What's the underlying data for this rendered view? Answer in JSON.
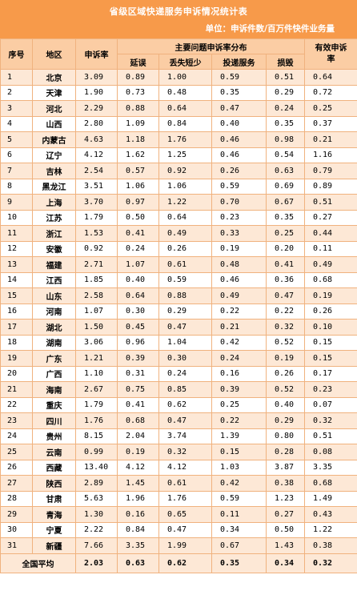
{
  "title": "省级区域快递服务申诉情况统计表",
  "unit": "单位：申诉件数/百万件快件业务量",
  "headers": {
    "index": "序号",
    "region": "地区",
    "rate": "申诉率",
    "group": "主要问题申诉率分布",
    "delay": "延误",
    "lost": "丢失短少",
    "delivery": "投递服务",
    "damage": "损毁",
    "valid": "有效申诉率"
  },
  "rows": [
    {
      "i": "1",
      "r": "北京",
      "rate": "3.09",
      "d": "0.89",
      "l": "1.00",
      "s": "0.59",
      "m": "0.51",
      "v": "0.64"
    },
    {
      "i": "2",
      "r": "天津",
      "rate": "1.90",
      "d": "0.73",
      "l": "0.48",
      "s": "0.35",
      "m": "0.29",
      "v": "0.72"
    },
    {
      "i": "3",
      "r": "河北",
      "rate": "2.29",
      "d": "0.88",
      "l": "0.64",
      "s": "0.47",
      "m": "0.24",
      "v": "0.25"
    },
    {
      "i": "4",
      "r": "山西",
      "rate": "2.80",
      "d": "1.09",
      "l": "0.84",
      "s": "0.40",
      "m": "0.35",
      "v": "0.37"
    },
    {
      "i": "5",
      "r": "内蒙古",
      "rate": "4.63",
      "d": "1.18",
      "l": "1.76",
      "s": "0.46",
      "m": "0.98",
      "v": "0.21"
    },
    {
      "i": "6",
      "r": "辽宁",
      "rate": "4.12",
      "d": "1.62",
      "l": "1.25",
      "s": "0.46",
      "m": "0.54",
      "v": "1.16"
    },
    {
      "i": "7",
      "r": "吉林",
      "rate": "2.54",
      "d": "0.57",
      "l": "0.92",
      "s": "0.26",
      "m": "0.63",
      "v": "0.79"
    },
    {
      "i": "8",
      "r": "黑龙江",
      "rate": "3.51",
      "d": "1.06",
      "l": "1.06",
      "s": "0.59",
      "m": "0.69",
      "v": "0.89"
    },
    {
      "i": "9",
      "r": "上海",
      "rate": "3.70",
      "d": "0.97",
      "l": "1.22",
      "s": "0.70",
      "m": "0.67",
      "v": "0.51"
    },
    {
      "i": "10",
      "r": "江苏",
      "rate": "1.79",
      "d": "0.50",
      "l": "0.64",
      "s": "0.23",
      "m": "0.35",
      "v": "0.27"
    },
    {
      "i": "11",
      "r": "浙江",
      "rate": "1.53",
      "d": "0.41",
      "l": "0.49",
      "s": "0.33",
      "m": "0.25",
      "v": "0.44"
    },
    {
      "i": "12",
      "r": "安徽",
      "rate": "0.92",
      "d": "0.24",
      "l": "0.26",
      "s": "0.19",
      "m": "0.20",
      "v": "0.11"
    },
    {
      "i": "13",
      "r": "福建",
      "rate": "2.71",
      "d": "1.07",
      "l": "0.61",
      "s": "0.48",
      "m": "0.41",
      "v": "0.49"
    },
    {
      "i": "14",
      "r": "江西",
      "rate": "1.85",
      "d": "0.40",
      "l": "0.59",
      "s": "0.46",
      "m": "0.36",
      "v": "0.68"
    },
    {
      "i": "15",
      "r": "山东",
      "rate": "2.58",
      "d": "0.64",
      "l": "0.88",
      "s": "0.49",
      "m": "0.47",
      "v": "0.19"
    },
    {
      "i": "16",
      "r": "河南",
      "rate": "1.07",
      "d": "0.30",
      "l": "0.29",
      "s": "0.22",
      "m": "0.22",
      "v": "0.26"
    },
    {
      "i": "17",
      "r": "湖北",
      "rate": "1.50",
      "d": "0.45",
      "l": "0.47",
      "s": "0.21",
      "m": "0.32",
      "v": "0.10"
    },
    {
      "i": "18",
      "r": "湖南",
      "rate": "3.06",
      "d": "0.96",
      "l": "1.04",
      "s": "0.42",
      "m": "0.52",
      "v": "0.15"
    },
    {
      "i": "19",
      "r": "广东",
      "rate": "1.21",
      "d": "0.39",
      "l": "0.30",
      "s": "0.24",
      "m": "0.19",
      "v": "0.15"
    },
    {
      "i": "20",
      "r": "广西",
      "rate": "1.10",
      "d": "0.31",
      "l": "0.24",
      "s": "0.16",
      "m": "0.26",
      "v": "0.17"
    },
    {
      "i": "21",
      "r": "海南",
      "rate": "2.67",
      "d": "0.75",
      "l": "0.85",
      "s": "0.39",
      "m": "0.52",
      "v": "0.23"
    },
    {
      "i": "22",
      "r": "重庆",
      "rate": "1.79",
      "d": "0.41",
      "l": "0.62",
      "s": "0.25",
      "m": "0.40",
      "v": "0.07"
    },
    {
      "i": "23",
      "r": "四川",
      "rate": "1.76",
      "d": "0.68",
      "l": "0.47",
      "s": "0.22",
      "m": "0.29",
      "v": "0.32"
    },
    {
      "i": "24",
      "r": "贵州",
      "rate": "8.15",
      "d": "2.04",
      "l": "3.74",
      "s": "1.39",
      "m": "0.80",
      "v": "0.51"
    },
    {
      "i": "25",
      "r": "云南",
      "rate": "0.99",
      "d": "0.19",
      "l": "0.32",
      "s": "0.15",
      "m": "0.28",
      "v": "0.08"
    },
    {
      "i": "26",
      "r": "西藏",
      "rate": "13.40",
      "d": "4.12",
      "l": "4.12",
      "s": "1.03",
      "m": "3.87",
      "v": "3.35"
    },
    {
      "i": "27",
      "r": "陕西",
      "rate": "2.89",
      "d": "1.45",
      "l": "0.61",
      "s": "0.42",
      "m": "0.38",
      "v": "0.68"
    },
    {
      "i": "28",
      "r": "甘肃",
      "rate": "5.63",
      "d": "1.96",
      "l": "1.76",
      "s": "0.59",
      "m": "1.23",
      "v": "1.49"
    },
    {
      "i": "29",
      "r": "青海",
      "rate": "1.30",
      "d": "0.16",
      "l": "0.65",
      "s": "0.11",
      "m": "0.27",
      "v": "0.43"
    },
    {
      "i": "30",
      "r": "宁夏",
      "rate": "2.22",
      "d": "0.84",
      "l": "0.47",
      "s": "0.34",
      "m": "0.50",
      "v": "1.22"
    },
    {
      "i": "31",
      "r": "新疆",
      "rate": "7.66",
      "d": "3.35",
      "l": "1.99",
      "s": "0.67",
      "m": "1.43",
      "v": "0.38"
    }
  ],
  "average": {
    "label": "全国平均",
    "rate": "2.03",
    "d": "0.63",
    "l": "0.62",
    "s": "0.35",
    "m": "0.34",
    "v": "0.32"
  },
  "colors": {
    "title_bg": "#f79a4a",
    "header_bg": "#fbcda4",
    "stripe": "#fde8d6",
    "border": "#f0b27e"
  }
}
